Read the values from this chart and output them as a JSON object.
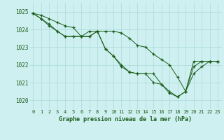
{
  "title": "Graphe pression niveau de la mer (hPa)",
  "background_color": "#cff0f0",
  "grid_color": "#aad8d8",
  "line_color": "#1a5c1a",
  "xlim": [
    -0.5,
    23.5
  ],
  "ylim": [
    1019.5,
    1025.5
  ],
  "yticks": [
    1020,
    1021,
    1022,
    1023,
    1024,
    1025
  ],
  "xticks": [
    0,
    1,
    2,
    3,
    4,
    5,
    6,
    7,
    8,
    9,
    10,
    11,
    12,
    13,
    14,
    15,
    16,
    17,
    18,
    19,
    20,
    21,
    22,
    23
  ],
  "series": [
    [
      1024.9,
      1024.8,
      1024.6,
      1024.4,
      1024.2,
      1024.1,
      1023.6,
      1023.6,
      1023.9,
      1023.9,
      1023.9,
      1023.8,
      1023.5,
      1023.1,
      1023.0,
      1022.6,
      1022.3,
      1022.0,
      1021.3,
      1020.5,
      1022.2,
      1022.2,
      1022.2,
      1022.2
    ],
    [
      1024.9,
      1024.6,
      1024.3,
      1023.9,
      1023.6,
      1023.6,
      1023.6,
      1023.6,
      1023.9,
      1022.9,
      1022.5,
      1022.0,
      1021.6,
      1021.5,
      1021.5,
      1021.0,
      1020.9,
      1020.5,
      1020.2,
      1020.5,
      1021.5,
      1021.9,
      1022.2,
      1022.2
    ],
    [
      1024.9,
      1024.6,
      1024.2,
      1023.9,
      1023.6,
      1023.6,
      1023.6,
      1023.9,
      1023.9,
      1022.9,
      1022.5,
      1021.9,
      1021.6,
      1021.5,
      1021.5,
      1021.5,
      1020.9,
      1020.4,
      1020.2,
      1020.5,
      1021.9,
      1022.2,
      1022.2,
      1022.2
    ]
  ]
}
